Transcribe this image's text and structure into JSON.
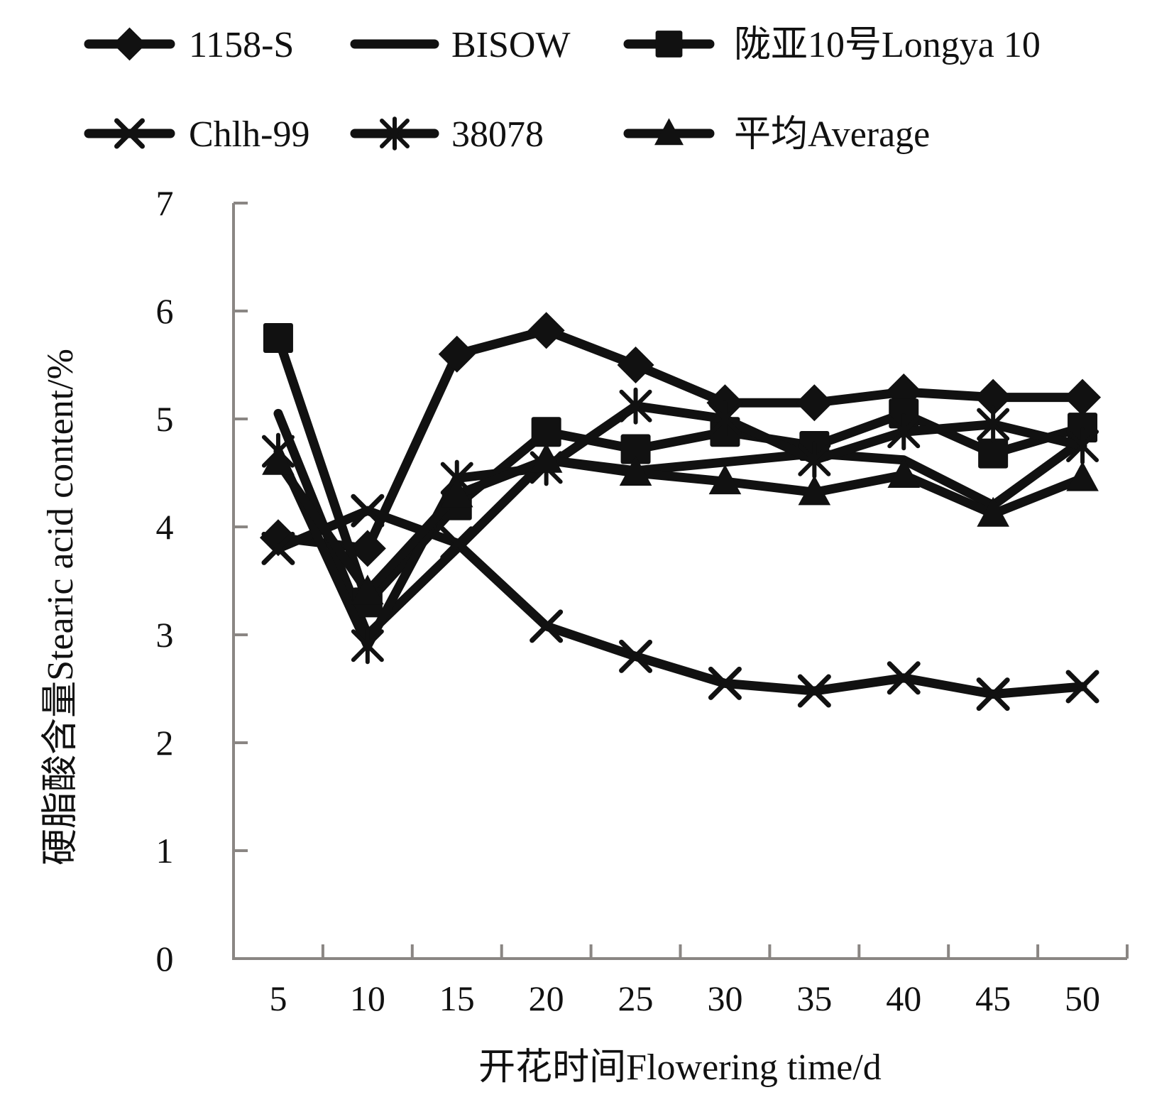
{
  "chart_data": {
    "type": "line",
    "title": "",
    "xlabel": "开花时间Flowering time/d",
    "ylabel": "硬脂酸含量Stearic acid content/%",
    "categories": [
      "5",
      "10",
      "15",
      "20",
      "25",
      "30",
      "35",
      "40",
      "45",
      "50"
    ],
    "yticks": [
      "0",
      "1",
      "2",
      "3",
      "4",
      "5",
      "6",
      "7"
    ],
    "ylim": [
      0,
      7
    ],
    "grid": false,
    "legend_position": "top",
    "series": [
      {
        "name": "1158-S",
        "marker": "diamond",
        "values": [
          3.9,
          3.8,
          5.6,
          5.82,
          5.5,
          5.15,
          5.15,
          5.25,
          5.2,
          5.2
        ]
      },
      {
        "name": "BISOW",
        "marker": "none",
        "values": [
          5.05,
          3.0,
          3.8,
          4.62,
          4.52,
          4.6,
          4.68,
          4.62,
          4.2,
          4.8
        ]
      },
      {
        "name": "陇亚10号Longya 10",
        "marker": "square",
        "values": [
          5.75,
          3.3,
          4.2,
          4.88,
          4.72,
          4.88,
          4.75,
          5.05,
          4.68,
          4.92
        ]
      },
      {
        "name": "Chlh-99",
        "marker": "x",
        "values": [
          3.8,
          4.15,
          3.85,
          3.08,
          2.8,
          2.55,
          2.48,
          2.6,
          2.45,
          2.52
        ]
      },
      {
        "name": "38078",
        "marker": "asterisk",
        "values": [
          4.7,
          2.9,
          4.45,
          4.55,
          5.12,
          5.0,
          4.62,
          4.88,
          4.95,
          4.75
        ]
      },
      {
        "name": "平均Average",
        "marker": "triangle",
        "values": [
          4.6,
          3.4,
          4.3,
          4.62,
          4.5,
          4.42,
          4.32,
          4.48,
          4.12,
          4.45
        ]
      }
    ],
    "colors": {
      "series": "#111111",
      "axis": "#8a8683"
    }
  }
}
